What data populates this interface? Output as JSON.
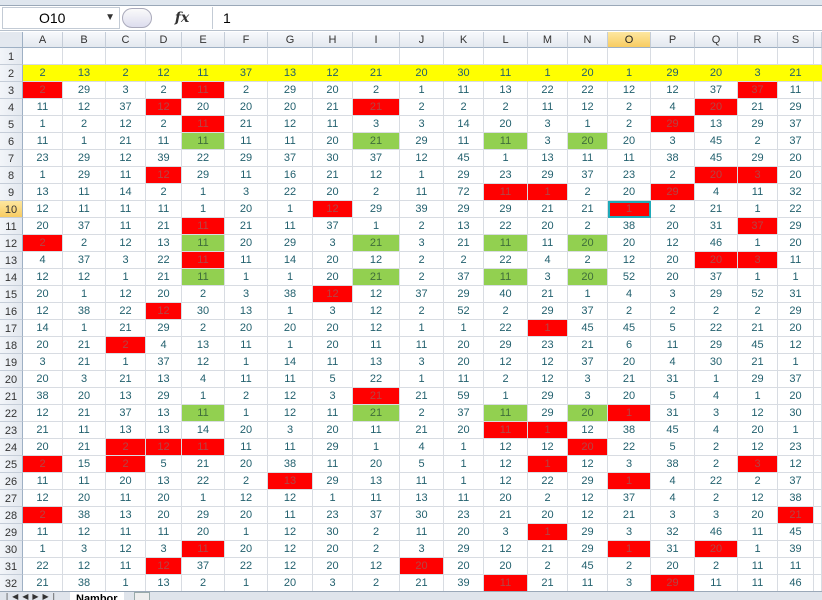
{
  "formula_bar": {
    "name_box": "O10",
    "fx_label": "fx",
    "formula": "1"
  },
  "sheet_tab": "Nambor",
  "selected_cell": "O10",
  "colors": {
    "header_row": "#ffff00",
    "red": "#ff0000",
    "green": "#92d050",
    "text": "#22606e"
  },
  "columns": [
    "A",
    "B",
    "C",
    "D",
    "E",
    "F",
    "G",
    "H",
    "I",
    "J",
    "K",
    "L",
    "M",
    "N",
    "O",
    "P",
    "Q",
    "R",
    "S"
  ],
  "rows": [
    [],
    [
      2,
      13,
      2,
      12,
      11,
      37,
      13,
      12,
      21,
      20,
      30,
      11,
      1,
      20,
      1,
      29,
      20,
      3,
      21
    ],
    [
      2,
      29,
      3,
      2,
      11,
      2,
      29,
      20,
      2,
      1,
      11,
      13,
      22,
      22,
      12,
      12,
      37,
      37,
      11
    ],
    [
      11,
      12,
      37,
      12,
      20,
      20,
      20,
      21,
      21,
      2,
      2,
      2,
      11,
      12,
      2,
      4,
      20,
      21,
      29
    ],
    [
      1,
      2,
      12,
      2,
      11,
      21,
      12,
      11,
      3,
      3,
      14,
      20,
      3,
      1,
      2,
      29,
      13,
      29,
      37
    ],
    [
      11,
      1,
      21,
      11,
      11,
      11,
      11,
      20,
      21,
      29,
      11,
      11,
      3,
      20,
      20,
      3,
      45,
      2,
      37
    ],
    [
      23,
      29,
      12,
      39,
      22,
      29,
      37,
      30,
      37,
      12,
      45,
      1,
      13,
      11,
      11,
      38,
      45,
      29,
      20
    ],
    [
      1,
      29,
      11,
      12,
      29,
      11,
      16,
      21,
      12,
      1,
      29,
      23,
      29,
      37,
      23,
      2,
      20,
      3,
      20
    ],
    [
      13,
      11,
      14,
      2,
      1,
      3,
      22,
      20,
      2,
      11,
      72,
      11,
      1,
      2,
      20,
      29,
      4,
      11,
      32
    ],
    [
      12,
      11,
      11,
      11,
      1,
      20,
      1,
      12,
      29,
      39,
      29,
      29,
      21,
      21,
      1,
      2,
      21,
      1,
      22
    ],
    [
      20,
      37,
      11,
      21,
      11,
      21,
      11,
      37,
      1,
      2,
      13,
      22,
      20,
      2,
      38,
      20,
      31,
      37,
      29
    ],
    [
      2,
      2,
      12,
      13,
      11,
      20,
      29,
      3,
      21,
      3,
      21,
      11,
      11,
      20,
      20,
      12,
      46,
      1,
      20
    ],
    [
      4,
      37,
      3,
      22,
      11,
      11,
      14,
      20,
      12,
      2,
      2,
      22,
      4,
      2,
      12,
      20,
      20,
      3,
      11
    ],
    [
      12,
      12,
      1,
      21,
      11,
      1,
      1,
      20,
      21,
      2,
      37,
      11,
      3,
      20,
      52,
      20,
      37,
      1,
      1
    ],
    [
      20,
      1,
      12,
      20,
      2,
      3,
      38,
      12,
      12,
      37,
      29,
      40,
      21,
      1,
      4,
      3,
      29,
      52,
      31
    ],
    [
      12,
      38,
      22,
      12,
      30,
      13,
      1,
      3,
      12,
      2,
      52,
      2,
      29,
      37,
      2,
      2,
      2,
      2,
      29
    ],
    [
      14,
      1,
      21,
      29,
      2,
      20,
      20,
      20,
      12,
      1,
      1,
      22,
      1,
      45,
      45,
      5,
      22,
      21,
      20
    ],
    [
      20,
      21,
      2,
      4,
      13,
      11,
      1,
      20,
      11,
      11,
      20,
      29,
      23,
      21,
      6,
      11,
      29,
      45,
      12
    ],
    [
      3,
      21,
      1,
      37,
      12,
      1,
      14,
      11,
      13,
      3,
      20,
      12,
      12,
      37,
      20,
      4,
      30,
      21,
      1
    ],
    [
      20,
      3,
      21,
      13,
      4,
      11,
      11,
      5,
      22,
      1,
      11,
      2,
      12,
      3,
      21,
      31,
      1,
      29,
      37
    ],
    [
      38,
      20,
      13,
      29,
      1,
      2,
      12,
      3,
      21,
      21,
      59,
      1,
      29,
      3,
      20,
      5,
      4,
      1,
      20
    ],
    [
      12,
      21,
      37,
      13,
      11,
      1,
      12,
      11,
      21,
      2,
      37,
      11,
      29,
      20,
      1,
      31,
      3,
      12,
      30
    ],
    [
      21,
      11,
      13,
      13,
      14,
      20,
      3,
      20,
      11,
      21,
      20,
      11,
      1,
      12,
      38,
      45,
      4,
      20,
      1
    ],
    [
      20,
      21,
      2,
      12,
      11,
      11,
      11,
      29,
      1,
      4,
      1,
      12,
      12,
      20,
      22,
      5,
      2,
      12,
      23
    ],
    [
      2,
      15,
      2,
      5,
      21,
      20,
      38,
      11,
      20,
      5,
      1,
      12,
      1,
      12,
      3,
      38,
      2,
      3,
      12
    ],
    [
      11,
      11,
      20,
      13,
      22,
      2,
      13,
      29,
      13,
      11,
      1,
      12,
      22,
      29,
      1,
      4,
      22,
      2,
      37
    ],
    [
      12,
      20,
      11,
      20,
      1,
      12,
      12,
      1,
      11,
      13,
      11,
      20,
      2,
      12,
      37,
      4,
      2,
      12,
      38
    ],
    [
      2,
      38,
      13,
      20,
      29,
      20,
      11,
      23,
      37,
      30,
      23,
      21,
      20,
      12,
      21,
      3,
      3,
      20,
      21
    ],
    [
      11,
      12,
      11,
      11,
      20,
      1,
      12,
      30,
      2,
      11,
      20,
      3,
      1,
      29,
      3,
      32,
      46,
      11,
      45
    ],
    [
      1,
      3,
      12,
      3,
      11,
      20,
      12,
      20,
      2,
      3,
      29,
      12,
      21,
      29,
      1,
      31,
      20,
      1,
      39
    ],
    [
      22,
      12,
      11,
      12,
      37,
      22,
      12,
      20,
      12,
      20,
      20,
      20,
      2,
      45,
      2,
      20,
      2,
      11,
      11
    ],
    [
      21,
      38,
      1,
      13,
      2,
      1,
      20,
      3,
      2,
      21,
      39,
      11,
      21,
      11,
      3,
      29,
      11,
      11,
      46
    ]
  ],
  "yellow_rows": [
    2
  ],
  "red_cells": [
    "A3",
    "E3",
    "R3",
    "D4",
    "I4",
    "Q4",
    "E5",
    "P5",
    "D8",
    "Q8",
    "R8",
    "L9",
    "M9",
    "P9",
    "H10",
    "O10",
    "E11",
    "R11",
    "A12",
    "E13",
    "Q13",
    "R13",
    "H15",
    "D16",
    "M17",
    "C18",
    "I21",
    "O22",
    "L23",
    "M23",
    "C24",
    "D24",
    "E24",
    "N24",
    "A25",
    "C25",
    "M25",
    "R25",
    "G26",
    "O26",
    "A28",
    "S28",
    "M29",
    "E30",
    "O30",
    "Q30",
    "D31",
    "J31",
    "L32",
    "P32"
  ],
  "green_cells": [
    "E6",
    "I6",
    "L6",
    "N6",
    "E12",
    "I12",
    "L12",
    "N12",
    "E14",
    "I14",
    "L14",
    "N14",
    "E22",
    "I22",
    "L22",
    "N22"
  ]
}
